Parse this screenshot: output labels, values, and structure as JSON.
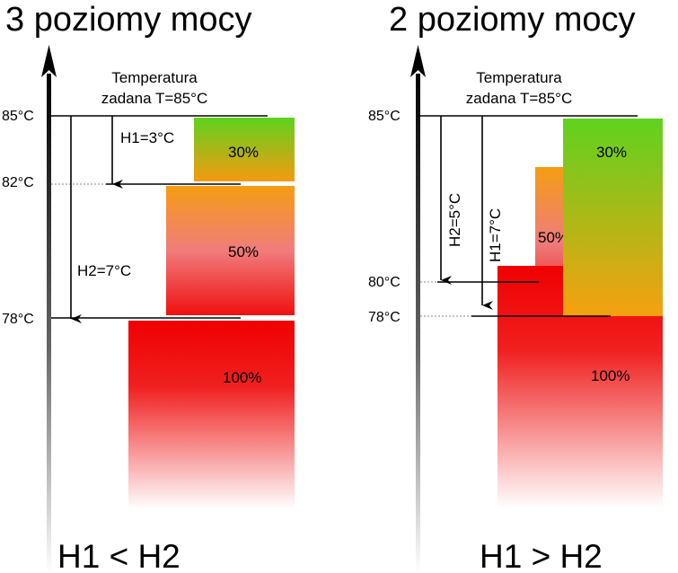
{
  "left": {
    "title": "3 poziomy mocy",
    "setpoint_line1": "Temperatura",
    "setpoint_line2": "zadana T=85°C",
    "ticks": [
      "85°C",
      "82°C",
      "78°C"
    ],
    "h1_label": "H1=3°C",
    "h2_label": "H2=7°C",
    "blocks": [
      "30%",
      "50%",
      "100%"
    ],
    "caption": "H1 < H2"
  },
  "right": {
    "title": "2 poziomy mocy",
    "setpoint_line1": "Temperatura",
    "setpoint_line2": "zadana T=85°C",
    "ticks": [
      "85°C",
      "80°C",
      "78°C"
    ],
    "h2_label": "H2=5°C",
    "h1_label": "H1=7°C",
    "blocks": [
      "30%",
      "50%",
      "100%"
    ],
    "caption": "H1 > H2"
  },
  "colors": {
    "green": "#5fd21f",
    "orange": "#f49d12",
    "red": "#f00000",
    "pink": "#f08080"
  }
}
